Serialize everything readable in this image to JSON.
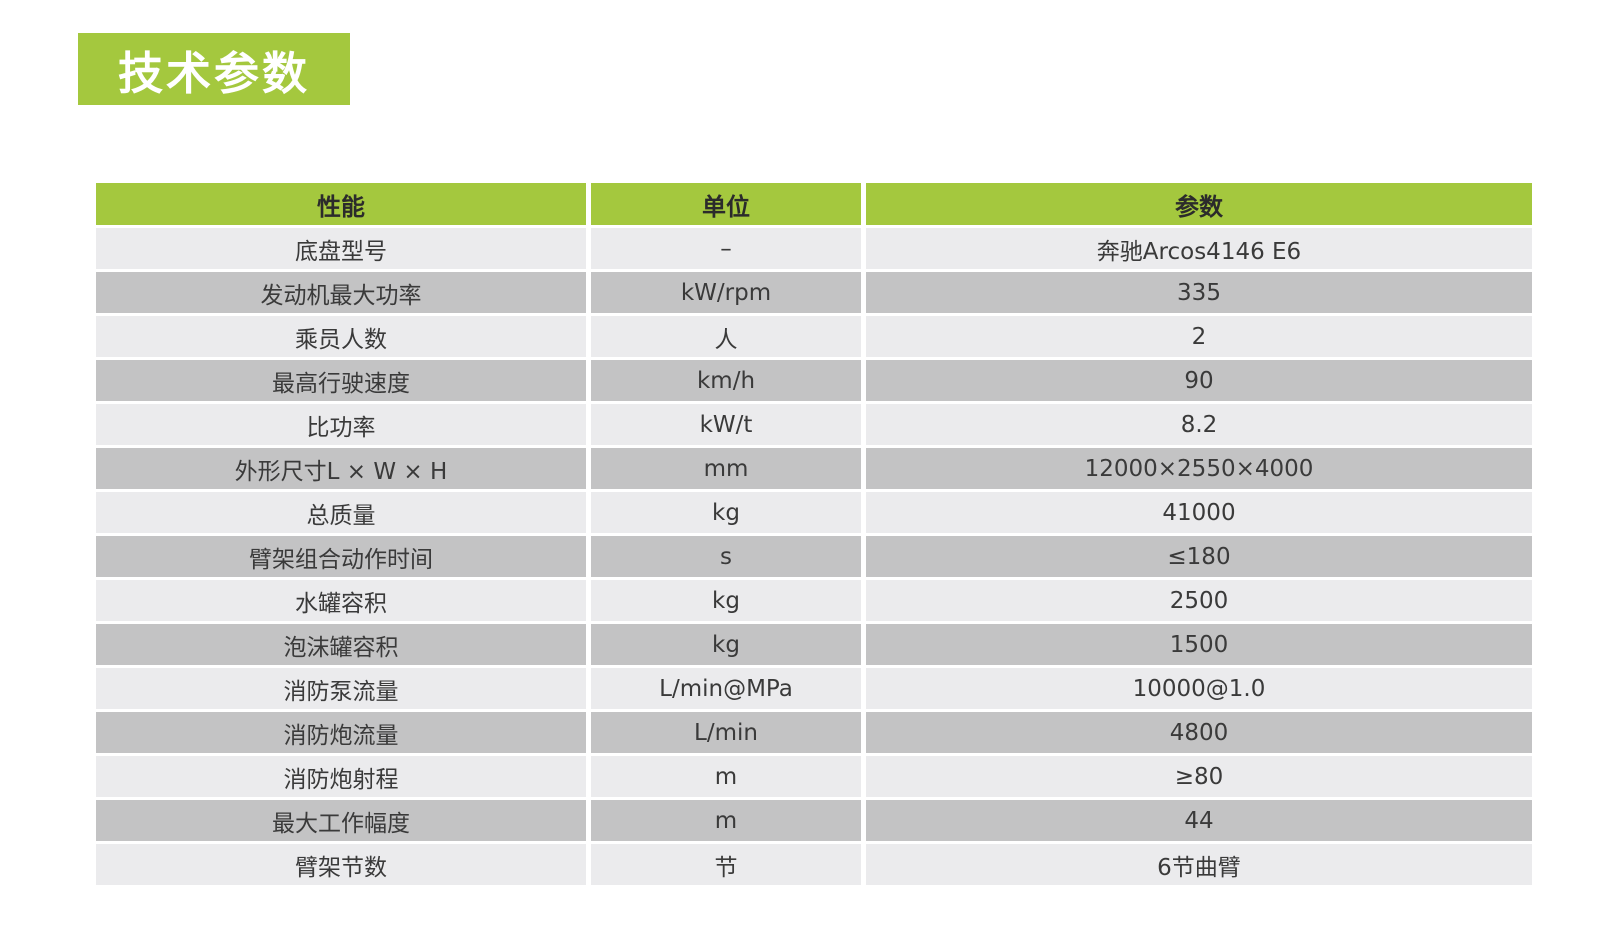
{
  "title": {
    "text": "技术参数"
  },
  "colors": {
    "accent_green": "#a4c83e",
    "row_light": "#ebebed",
    "row_dark": "#c3c3c4",
    "header_text": "#2b2b2b",
    "cell_text": "#3a3a3a",
    "title_text": "#ffffff",
    "page_bg": "#ffffff"
  },
  "table": {
    "columns": [
      "性能",
      "单位",
      "参数"
    ],
    "rows": [
      {
        "performance": "底盘型号",
        "unit": "–",
        "parameter": "奔驰Arcos4146 E6"
      },
      {
        "performance": "发动机最大功率",
        "unit": "kW/rpm",
        "parameter": "335"
      },
      {
        "performance": "乘员人数",
        "unit": "人",
        "parameter": "2"
      },
      {
        "performance": "最高行驶速度",
        "unit": "km/h",
        "parameter": "90"
      },
      {
        "performance": "比功率",
        "unit": "kW/t",
        "parameter": "8.2"
      },
      {
        "performance": "外形尺寸L × W × H",
        "unit": "mm",
        "parameter": "12000×2550×4000"
      },
      {
        "performance": "总质量",
        "unit": "kg",
        "parameter": "41000"
      },
      {
        "performance": "臂架组合动作时间",
        "unit": "s",
        "parameter": "≤180"
      },
      {
        "performance": "水罐容积",
        "unit": "kg",
        "parameter": "2500"
      },
      {
        "performance": "泡沫罐容积",
        "unit": "kg",
        "parameter": "1500"
      },
      {
        "performance": "消防泵流量",
        "unit": "L/min@MPa",
        "parameter": "10000@1.0"
      },
      {
        "performance": "消防炮流量",
        "unit": "L/min",
        "parameter": "4800"
      },
      {
        "performance": "消防炮射程",
        "unit": "m",
        "parameter": "≥80"
      },
      {
        "performance": "最大工作幅度",
        "unit": "m",
        "parameter": "44"
      },
      {
        "performance": "臂架节数",
        "unit": "节",
        "parameter": "6节曲臂"
      }
    ]
  }
}
